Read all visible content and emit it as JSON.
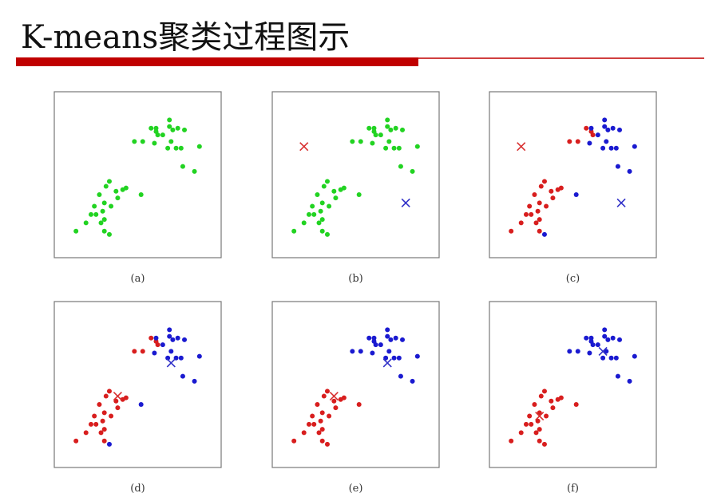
{
  "title": "K-means聚类过程图示",
  "chart_data": [
    {
      "type": "scatter",
      "caption": "(a)",
      "xlim": [
        0,
        100
      ],
      "ylim": [
        0,
        100
      ],
      "series": [
        {
          "color": "#22d322",
          "x": [
            48,
            53,
            58,
            61,
            61,
            62,
            60,
            65,
            69,
            69,
            71,
            74,
            70,
            73,
            76,
            78,
            77,
            84,
            87,
            68,
            13,
            19,
            22,
            24,
            27,
            31,
            33,
            37,
            41,
            43,
            38,
            29,
            30,
            30,
            33,
            30,
            52,
            34,
            28,
            25
          ],
          "y": [
            70,
            70,
            78,
            78,
            76,
            74,
            69,
            74,
            83,
            79,
            77,
            78,
            70,
            66,
            66,
            77,
            55,
            52,
            67,
            66,
            16,
            21,
            26,
            31,
            38,
            43,
            46,
            40,
            41,
            42,
            36,
            28,
            23,
            16,
            14,
            33,
            38,
            31,
            21,
            26
          ]
        }
      ]
    },
    {
      "type": "scatter",
      "caption": "(b)",
      "xlim": [
        0,
        100
      ],
      "ylim": [
        0,
        100
      ],
      "series": [
        {
          "color": "#22d322",
          "x": [
            48,
            53,
            58,
            61,
            61,
            62,
            60,
            65,
            69,
            69,
            71,
            74,
            70,
            73,
            76,
            78,
            77,
            84,
            87,
            68,
            13,
            19,
            22,
            24,
            27,
            31,
            33,
            37,
            41,
            43,
            38,
            29,
            30,
            30,
            33,
            30,
            52,
            34,
            28,
            25
          ],
          "y": [
            70,
            70,
            78,
            78,
            76,
            74,
            69,
            74,
            83,
            79,
            77,
            78,
            70,
            66,
            66,
            77,
            55,
            52,
            67,
            66,
            16,
            21,
            26,
            31,
            38,
            43,
            46,
            40,
            41,
            42,
            36,
            28,
            23,
            16,
            14,
            33,
            38,
            31,
            21,
            26
          ]
        },
        {
          "color": "#d83030",
          "marker": "x",
          "x": [
            19
          ],
          "y": [
            67
          ]
        },
        {
          "color": "#3030c8",
          "marker": "x",
          "x": [
            80
          ],
          "y": [
            33
          ]
        }
      ]
    },
    {
      "type": "scatter",
      "caption": "(c)",
      "xlim": [
        0,
        100
      ],
      "ylim": [
        0,
        100
      ],
      "series": [
        {
          "color": "#d81e1e",
          "x": [
            13,
            19,
            22,
            24,
            27,
            31,
            33,
            37,
            41,
            43,
            38,
            29,
            30,
            30,
            30,
            34,
            28,
            25,
            48,
            53,
            58,
            61,
            62
          ],
          "y": [
            16,
            21,
            26,
            31,
            38,
            43,
            46,
            40,
            41,
            42,
            36,
            28,
            23,
            16,
            33,
            31,
            21,
            26,
            70,
            70,
            78,
            76,
            74
          ]
        },
        {
          "color": "#1a1ad0",
          "x": [
            61,
            60,
            65,
            69,
            69,
            71,
            74,
            70,
            73,
            76,
            78,
            77,
            84,
            87,
            68,
            33,
            52
          ],
          "y": [
            78,
            69,
            74,
            83,
            79,
            77,
            78,
            70,
            66,
            66,
            77,
            55,
            52,
            67,
            66,
            14,
            38
          ]
        },
        {
          "color": "#d83030",
          "marker": "x",
          "x": [
            19
          ],
          "y": [
            67
          ]
        },
        {
          "color": "#3030c8",
          "marker": "x",
          "x": [
            79
          ],
          "y": [
            33
          ]
        }
      ]
    },
    {
      "type": "scatter",
      "caption": "(d)",
      "xlim": [
        0,
        100
      ],
      "ylim": [
        0,
        100
      ],
      "series": [
        {
          "color": "#d81e1e",
          "x": [
            13,
            19,
            22,
            24,
            27,
            31,
            33,
            37,
            41,
            43,
            38,
            29,
            30,
            30,
            30,
            34,
            28,
            25,
            48,
            53,
            58,
            61,
            62
          ],
          "y": [
            16,
            21,
            26,
            31,
            38,
            43,
            46,
            40,
            41,
            42,
            36,
            28,
            23,
            16,
            33,
            31,
            21,
            26,
            70,
            70,
            78,
            76,
            74
          ]
        },
        {
          "color": "#1a1ad0",
          "x": [
            61,
            60,
            65,
            69,
            69,
            71,
            74,
            70,
            73,
            76,
            78,
            77,
            84,
            87,
            68,
            33,
            52
          ],
          "y": [
            78,
            69,
            74,
            83,
            79,
            77,
            78,
            70,
            66,
            66,
            77,
            55,
            52,
            67,
            66,
            14,
            38
          ]
        },
        {
          "color": "#d83030",
          "marker": "x",
          "x": [
            38
          ],
          "y": [
            43
          ]
        },
        {
          "color": "#3030c8",
          "marker": "x",
          "x": [
            70
          ],
          "y": [
            63
          ]
        }
      ]
    },
    {
      "type": "scatter",
      "caption": "(e)",
      "xlim": [
        0,
        100
      ],
      "ylim": [
        0,
        100
      ],
      "series": [
        {
          "color": "#d81e1e",
          "x": [
            13,
            19,
            22,
            24,
            27,
            31,
            33,
            37,
            41,
            43,
            38,
            29,
            30,
            30,
            33,
            30,
            52,
            34,
            28,
            25
          ],
          "y": [
            16,
            21,
            26,
            31,
            38,
            43,
            46,
            40,
            41,
            42,
            36,
            28,
            23,
            16,
            14,
            33,
            38,
            31,
            21,
            26
          ]
        },
        {
          "color": "#1a1ad0",
          "x": [
            48,
            53,
            58,
            61,
            61,
            62,
            60,
            65,
            69,
            69,
            71,
            74,
            70,
            73,
            76,
            78,
            77,
            84,
            87,
            68
          ],
          "y": [
            70,
            70,
            78,
            78,
            76,
            74,
            69,
            74,
            83,
            79,
            77,
            78,
            70,
            66,
            66,
            77,
            55,
            52,
            67,
            66
          ]
        },
        {
          "color": "#d83030",
          "marker": "x",
          "x": [
            37
          ],
          "y": [
            43
          ]
        },
        {
          "color": "#3030c8",
          "marker": "x",
          "x": [
            69
          ],
          "y": [
            63
          ]
        }
      ]
    },
    {
      "type": "scatter",
      "caption": "(f)",
      "xlim": [
        0,
        100
      ],
      "ylim": [
        0,
        100
      ],
      "series": [
        {
          "color": "#d81e1e",
          "x": [
            13,
            19,
            22,
            24,
            27,
            31,
            33,
            37,
            41,
            43,
            38,
            29,
            30,
            30,
            33,
            30,
            52,
            34,
            28,
            25
          ],
          "y": [
            16,
            21,
            26,
            31,
            38,
            43,
            46,
            40,
            41,
            42,
            36,
            28,
            23,
            16,
            14,
            33,
            38,
            31,
            21,
            26
          ]
        },
        {
          "color": "#1a1ad0",
          "x": [
            48,
            53,
            58,
            61,
            61,
            62,
            60,
            65,
            69,
            69,
            71,
            74,
            70,
            73,
            76,
            78,
            77,
            84,
            87,
            68
          ],
          "y": [
            70,
            70,
            78,
            78,
            76,
            74,
            69,
            74,
            83,
            79,
            77,
            78,
            70,
            66,
            66,
            77,
            55,
            52,
            67,
            66
          ]
        },
        {
          "color": "#d83030",
          "marker": "x",
          "x": [
            30
          ],
          "y": [
            31
          ]
        },
        {
          "color": "#3030c8",
          "marker": "x",
          "x": [
            68
          ],
          "y": [
            70
          ]
        }
      ]
    }
  ]
}
